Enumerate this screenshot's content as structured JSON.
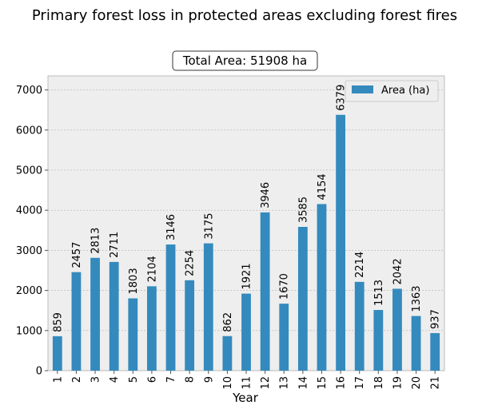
{
  "chart_data": {
    "type": "bar",
    "title": "Primary forest loss in protected areas excluding forest fires",
    "annotation": "Total Area: 51908 ha",
    "xlabel": "Year",
    "ylabel": "",
    "categories": [
      "1",
      "2",
      "3",
      "4",
      "5",
      "6",
      "7",
      "8",
      "9",
      "10",
      "11",
      "12",
      "13",
      "14",
      "15",
      "16",
      "17",
      "18",
      "19",
      "20",
      "21"
    ],
    "series": [
      {
        "name": "Area (ha)",
        "color": "#348abd",
        "values": [
          859,
          2457,
          2813,
          2711,
          1803,
          2104,
          3146,
          2254,
          3175,
          862,
          1921,
          3946,
          1670,
          3585,
          4154,
          6379,
          2214,
          1513,
          2042,
          1363,
          937
        ]
      }
    ],
    "ylim": [
      0,
      7350
    ],
    "yticks": [
      0,
      1000,
      2000,
      3000,
      4000,
      5000,
      6000,
      7000
    ],
    "grid": true,
    "legend": "top-right",
    "background": "#eeeeee"
  }
}
